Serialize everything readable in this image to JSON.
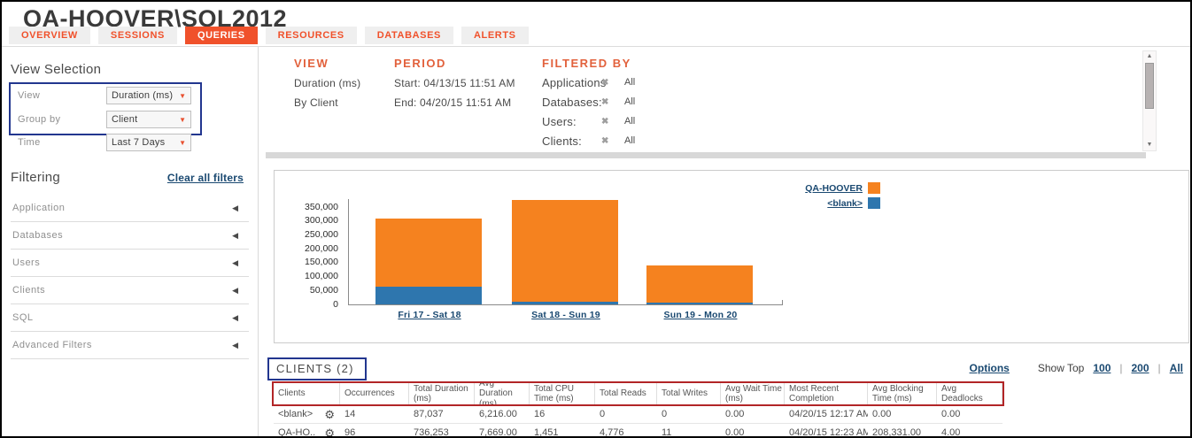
{
  "icons": {
    "dropdown_arrow": "▼",
    "collapse_arrow": "◀",
    "remove": "✖",
    "gear": "⚙",
    "scroll_up": "▲",
    "scroll_down": "▼"
  },
  "colors": {
    "accent_orange": "#F0512B",
    "heading_orange": "#E2613C",
    "bar_orange": "#F5821F",
    "bar_blue": "#2E76AE",
    "link_navy": "#1A4971",
    "annotation_blue": "#22368F",
    "annotation_red": "#B22527"
  },
  "header": {
    "title": "QA-HOOVER\\SQL2012",
    "tabs": [
      {
        "label": "OVERVIEW",
        "active": false
      },
      {
        "label": "SESSIONS",
        "active": false
      },
      {
        "label": "QUERIES",
        "active": true
      },
      {
        "label": "RESOURCES",
        "active": false
      },
      {
        "label": "DATABASES",
        "active": false
      },
      {
        "label": "ALERTS",
        "active": false
      }
    ]
  },
  "sidebar": {
    "view_selection": {
      "title": "View Selection",
      "fields": [
        {
          "label": "View",
          "value": "Duration (ms)"
        },
        {
          "label": "Group by",
          "value": "Client"
        },
        {
          "label": "Time",
          "value": "Last 7 Days"
        }
      ]
    },
    "filtering": {
      "title": "Filtering",
      "clear_link": "Clear all filters",
      "items": [
        {
          "label": "Application"
        },
        {
          "label": "Databases"
        },
        {
          "label": "Users"
        },
        {
          "label": "Clients"
        },
        {
          "label": "SQL"
        },
        {
          "label": "Advanced Filters"
        }
      ]
    }
  },
  "summary": {
    "view": {
      "heading": "VIEW",
      "line1": "Duration (ms)",
      "line2": "By Client"
    },
    "period": {
      "heading": "PERIOD",
      "start": "Start: 04/13/15 11:51 AM",
      "end": "End: 04/20/15 11:51 AM"
    },
    "filtered_by": {
      "heading": "FILTERED BY",
      "rows": [
        {
          "label": "Applications",
          "value": "All"
        },
        {
          "label": "Databases:",
          "value": "All"
        },
        {
          "label": "Users:",
          "value": "All"
        },
        {
          "label": "Clients:",
          "value": "All"
        }
      ]
    }
  },
  "chart_data": {
    "type": "bar",
    "stacked": true,
    "title": "",
    "xlabel": "",
    "ylabel": "",
    "categories": [
      "Fri 17 - Sat 18",
      "Sat 18 - Sun 19",
      "Sun 19 - Mon 20"
    ],
    "series": [
      {
        "name": "<blank>",
        "color": "#2E76AE",
        "values": [
          65000,
          10000,
          8000
        ]
      },
      {
        "name": "QA-HOOVER",
        "color": "#F5821F",
        "values": [
          245000,
          365000,
          132000
        ]
      }
    ],
    "stack_totals": [
      310000,
      375000,
      140000
    ],
    "ylim": [
      0,
      385000
    ],
    "yticks": [
      0,
      50000,
      100000,
      150000,
      200000,
      250000,
      300000,
      350000
    ],
    "ytick_labels": [
      "0",
      "50,000",
      "100,000",
      "150,000",
      "200,000",
      "250,000",
      "300,000",
      "350,000"
    ],
    "grid": false,
    "legend_position": "top-right",
    "legend": [
      {
        "label": "QA-HOOVER",
        "color": "#F5821F"
      },
      {
        "label": "<blank>",
        "color": "#2E76AE"
      }
    ],
    "x_labels_are_links": true
  },
  "table_section": {
    "title": "CLIENTS (2)",
    "options_link": "Options",
    "show_top_label": "Show Top",
    "show_top_options": [
      "100",
      "200",
      "All"
    ],
    "separator": "|",
    "columns": [
      "Clients",
      "Occurrences",
      "Total Duration (ms)",
      "Avg Duration (ms)",
      "Total CPU Time (ms)",
      "Total Reads",
      "Total Writes",
      "Avg Wait Time (ms)",
      "Most Recent Completion",
      "Avg Blocking Time (ms)",
      "Avg Deadlocks"
    ],
    "rows": [
      {
        "cells": [
          "<blank>",
          "14",
          "87,037",
          "6,216.00",
          "16",
          "0",
          "0",
          "0.00",
          "04/20/15 12:17 AM",
          "0.00",
          "0.00"
        ]
      },
      {
        "cells": [
          "QA-HO..",
          "96",
          "736,253",
          "7,669.00",
          "1,451",
          "4,776",
          "11",
          "0.00",
          "04/20/15 12:23 AM",
          "208,331.00",
          "4.00"
        ]
      }
    ]
  }
}
